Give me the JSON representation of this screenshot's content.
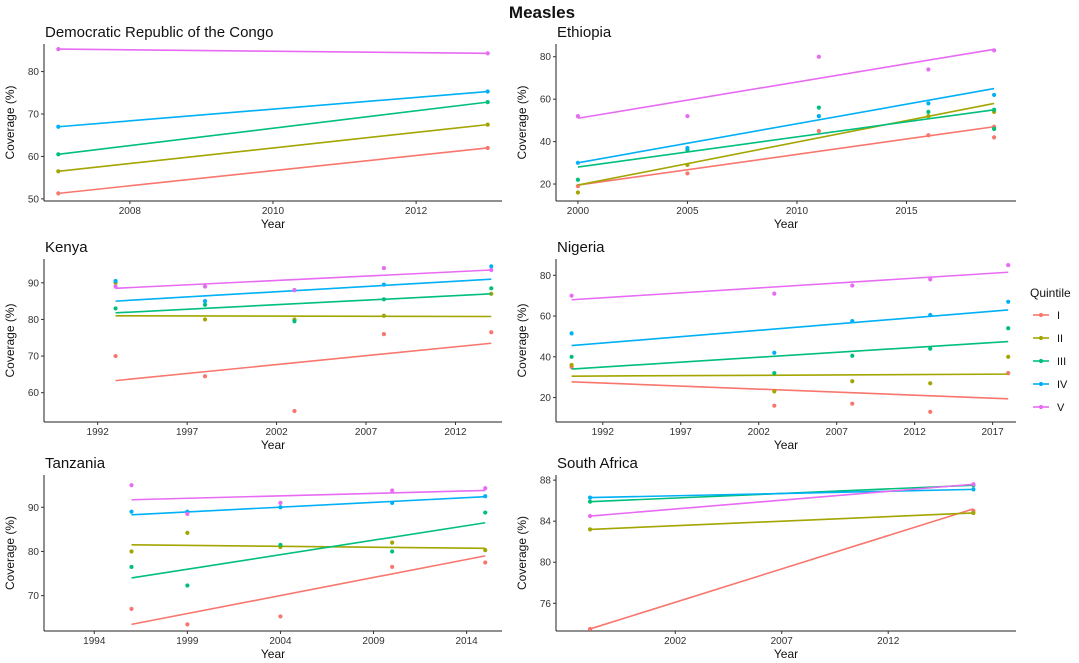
{
  "title": "Measles",
  "legend": {
    "title": "Quintile",
    "position": "right",
    "entries": [
      {
        "name": "I",
        "color": "#F8766D"
      },
      {
        "name": "II",
        "color": "#A3A500"
      },
      {
        "name": "III",
        "color": "#00BF7D"
      },
      {
        "name": "IV",
        "color": "#00B0F6"
      },
      {
        "name": "V",
        "color": "#E76BF3"
      }
    ]
  },
  "chart_data": [
    {
      "type": "scatter",
      "title": "Democratic Republic of the Congo",
      "xlabel": "Year",
      "ylabel": "Coverage (%)",
      "xlim": [
        2006.8,
        2013.2
      ],
      "ylim": [
        49.5,
        86.5
      ],
      "xticks": [
        2008,
        2010,
        2012
      ],
      "yticks": [
        50,
        60,
        70,
        80
      ],
      "series": [
        {
          "name": "I",
          "points": [
            [
              2007,
              51.3
            ],
            [
              2013,
              62.0
            ]
          ],
          "fit": [
            [
              2007,
              51.3
            ],
            [
              2013,
              62.0
            ]
          ]
        },
        {
          "name": "II",
          "points": [
            [
              2007,
              56.5
            ],
            [
              2013,
              67.5
            ]
          ],
          "fit": [
            [
              2007,
              56.5
            ],
            [
              2013,
              67.5
            ]
          ]
        },
        {
          "name": "III",
          "points": [
            [
              2007,
              60.5
            ],
            [
              2013,
              72.8
            ]
          ],
          "fit": [
            [
              2007,
              60.5
            ],
            [
              2013,
              72.8
            ]
          ]
        },
        {
          "name": "IV",
          "points": [
            [
              2007,
              67.0
            ],
            [
              2013,
              75.3
            ]
          ],
          "fit": [
            [
              2007,
              67.0
            ],
            [
              2013,
              75.3
            ]
          ]
        },
        {
          "name": "V",
          "points": [
            [
              2007,
              85.3
            ],
            [
              2013,
              84.3
            ]
          ],
          "fit": [
            [
              2007,
              85.3
            ],
            [
              2013,
              84.3
            ]
          ]
        }
      ]
    },
    {
      "type": "scatter",
      "title": "Ethiopia",
      "xlabel": "Year",
      "ylabel": "Coverage (%)",
      "xlim": [
        1999.0,
        2020.0
      ],
      "ylim": [
        12,
        86
      ],
      "xticks": [
        2000,
        2005,
        2010,
        2015
      ],
      "yticks": [
        20,
        40,
        60,
        80
      ],
      "series": [
        {
          "name": "I",
          "points": [
            [
              2000,
              19
            ],
            [
              2005,
              25
            ],
            [
              2011,
              45
            ],
            [
              2016,
              43
            ],
            [
              2019,
              42
            ],
            [
              2019,
              47
            ]
          ],
          "fit": [
            [
              2000,
              19.5
            ],
            [
              2019,
              47.0
            ]
          ]
        },
        {
          "name": "II",
          "points": [
            [
              2000,
              16
            ],
            [
              2005,
              29
            ],
            [
              2011,
              52
            ],
            [
              2016,
              52
            ],
            [
              2019,
              54
            ],
            [
              2019,
              46
            ]
          ],
          "fit": [
            [
              2000,
              19.5
            ],
            [
              2019,
              58.0
            ]
          ]
        },
        {
          "name": "III",
          "points": [
            [
              2000,
              22
            ],
            [
              2005,
              36
            ],
            [
              2011,
              56
            ],
            [
              2016,
              54
            ],
            [
              2019,
              55
            ],
            [
              2019,
              46
            ]
          ],
          "fit": [
            [
              2000,
              28.0
            ],
            [
              2019,
              55.0
            ]
          ]
        },
        {
          "name": "IV",
          "points": [
            [
              2000,
              30
            ],
            [
              2005,
              37
            ],
            [
              2011,
              52
            ],
            [
              2016,
              58
            ],
            [
              2019,
              62
            ]
          ],
          "fit": [
            [
              2000,
              30.0
            ],
            [
              2019,
              65.0
            ]
          ]
        },
        {
          "name": "V",
          "points": [
            [
              2000,
              52
            ],
            [
              2005,
              52
            ],
            [
              2011,
              80
            ],
            [
              2016,
              74
            ],
            [
              2019,
              83
            ]
          ],
          "fit": [
            [
              2000,
              51.0
            ],
            [
              2019,
              83.5
            ]
          ]
        }
      ]
    },
    {
      "type": "scatter",
      "title": "Kenya",
      "xlabel": "Year",
      "ylabel": "Coverage (%)",
      "xlim": [
        1989.0,
        2014.6
      ],
      "ylim": [
        52,
        96.5
      ],
      "xticks": [
        1992,
        1997,
        2002,
        2007,
        2012
      ],
      "yticks": [
        60,
        70,
        80,
        90
      ],
      "series": [
        {
          "name": "I",
          "points": [
            [
              1993,
              70
            ],
            [
              1998,
              64.5
            ],
            [
              2003,
              55
            ],
            [
              2008,
              76
            ],
            [
              2014,
              76.5
            ]
          ],
          "fit": [
            [
              1993,
              63.3
            ],
            [
              2014,
              73.5
            ]
          ]
        },
        {
          "name": "II",
          "points": [
            [
              1993,
              90
            ],
            [
              1998,
              80
            ],
            [
              2003,
              80
            ],
            [
              2008,
              81
            ],
            [
              2014,
              87
            ]
          ],
          "fit": [
            [
              1993,
              81.0
            ],
            [
              2014,
              80.8
            ]
          ]
        },
        {
          "name": "III",
          "points": [
            [
              1993,
              83
            ],
            [
              1998,
              84
            ],
            [
              2003,
              79.5
            ],
            [
              2008,
              85.5
            ],
            [
              2014,
              88.5
            ]
          ],
          "fit": [
            [
              1993,
              81.8
            ],
            [
              2014,
              87.0
            ]
          ]
        },
        {
          "name": "IV",
          "points": [
            [
              1993,
              90.5
            ],
            [
              1998,
              85
            ],
            [
              2003,
              88
            ],
            [
              2008,
              89.5
            ],
            [
              2014,
              94.5
            ]
          ],
          "fit": [
            [
              1993,
              85.0
            ],
            [
              2014,
              91.0
            ]
          ]
        },
        {
          "name": "V",
          "points": [
            [
              1993,
              89
            ],
            [
              1998,
              89
            ],
            [
              2003,
              88
            ],
            [
              2008,
              94
            ],
            [
              2014,
              93.5
            ]
          ],
          "fit": [
            [
              1993,
              88.5
            ],
            [
              2014,
              93.5
            ]
          ]
        }
      ]
    },
    {
      "type": "scatter",
      "title": "Nigeria",
      "xlabel": "Year",
      "ylabel": "Coverage (%)",
      "xlim": [
        1989.0,
        2018.5
      ],
      "ylim": [
        8,
        88
      ],
      "xticks": [
        1992,
        1997,
        2002,
        2007,
        2012,
        2017
      ],
      "yticks": [
        20,
        40,
        60,
        80
      ],
      "series": [
        {
          "name": "I",
          "points": [
            [
              1990,
              35
            ],
            [
              2003,
              16
            ],
            [
              2008,
              17
            ],
            [
              2013,
              13
            ],
            [
              2018,
              32
            ]
          ],
          "fit": [
            [
              1990,
              27.7
            ],
            [
              2018,
              19.4
            ]
          ]
        },
        {
          "name": "II",
          "points": [
            [
              1990,
              36
            ],
            [
              2003,
              23
            ],
            [
              2008,
              28
            ],
            [
              2013,
              27
            ],
            [
              2018,
              40
            ]
          ],
          "fit": [
            [
              1990,
              30.5
            ],
            [
              2018,
              31.5
            ]
          ]
        },
        {
          "name": "III",
          "points": [
            [
              1990,
              40
            ],
            [
              2003,
              32
            ],
            [
              2008,
              40.5
            ],
            [
              2013,
              44
            ],
            [
              2018,
              54
            ]
          ],
          "fit": [
            [
              1990,
              34.0
            ],
            [
              2018,
              47.5
            ]
          ]
        },
        {
          "name": "IV",
          "points": [
            [
              1990,
              51.5
            ],
            [
              2003,
              42
            ],
            [
              2008,
              57.5
            ],
            [
              2013,
              60.5
            ],
            [
              2018,
              67
            ]
          ],
          "fit": [
            [
              1990,
              45.5
            ],
            [
              2018,
              63.0
            ]
          ]
        },
        {
          "name": "V",
          "points": [
            [
              1990,
              70
            ],
            [
              2003,
              71
            ],
            [
              2008,
              75
            ],
            [
              2013,
              78
            ],
            [
              2018,
              85
            ]
          ],
          "fit": [
            [
              1990,
              68.0
            ],
            [
              2018,
              81.5
            ]
          ]
        }
      ]
    },
    {
      "type": "scatter",
      "title": "Tanzania",
      "xlabel": "Year",
      "ylabel": "Coverage (%)",
      "xlim": [
        1991.3,
        2015.9
      ],
      "ylim": [
        62,
        97.3
      ],
      "xticks": [
        1994,
        1999,
        2004,
        2009,
        2014
      ],
      "yticks": [
        70,
        80,
        90
      ],
      "series": [
        {
          "name": "I",
          "points": [
            [
              1996,
              67
            ],
            [
              1999,
              63.5
            ],
            [
              2004,
              65.3
            ],
            [
              2010,
              76.5
            ],
            [
              2015,
              77.5
            ]
          ],
          "fit": [
            [
              1996,
              63.5
            ],
            [
              2015,
              79.0
            ]
          ]
        },
        {
          "name": "II",
          "points": [
            [
              1996,
              80
            ],
            [
              1999,
              84.2
            ],
            [
              2004,
              81
            ],
            [
              2010,
              82
            ],
            [
              2015,
              80.3
            ]
          ],
          "fit": [
            [
              1996,
              81.5
            ],
            [
              2015,
              80.7
            ]
          ]
        },
        {
          "name": "III",
          "points": [
            [
              1996,
              76.5
            ],
            [
              1999,
              72.3
            ],
            [
              2004,
              81.5
            ],
            [
              2010,
              80
            ],
            [
              2015,
              88.8
            ]
          ],
          "fit": [
            [
              1996,
              74.0
            ],
            [
              2015,
              86.5
            ]
          ]
        },
        {
          "name": "IV",
          "points": [
            [
              1996,
              89
            ],
            [
              1999,
              89
            ],
            [
              2004,
              90
            ],
            [
              2010,
              91
            ],
            [
              2015,
              92.5
            ]
          ],
          "fit": [
            [
              1996,
              88.3
            ],
            [
              2015,
              92.4
            ]
          ]
        },
        {
          "name": "V",
          "points": [
            [
              1996,
              95
            ],
            [
              1999,
              88.5
            ],
            [
              2004,
              91
            ],
            [
              2010,
              93.8
            ],
            [
              2015,
              94.3
            ]
          ],
          "fit": [
            [
              1996,
              91.7
            ],
            [
              2015,
              93.8
            ]
          ]
        }
      ]
    },
    {
      "type": "scatter",
      "title": "South Africa",
      "xlabel": "Year",
      "ylabel": "Coverage (%)",
      "xlim": [
        1996.4,
        2018.0
      ],
      "ylim": [
        73.3,
        88.5
      ],
      "xticks": [
        2002,
        2007,
        2012
      ],
      "yticks": [
        76,
        80,
        84,
        88
      ],
      "series": [
        {
          "name": "I",
          "points": [
            [
              1998,
              73.5
            ],
            [
              2016,
              85.0
            ]
          ],
          "fit": [
            [
              1998,
              73.5
            ],
            [
              2016,
              85.2
            ]
          ]
        },
        {
          "name": "II",
          "points": [
            [
              1998,
              83.2
            ],
            [
              2016,
              84.8
            ]
          ],
          "fit": [
            [
              1998,
              83.2
            ],
            [
              2016,
              84.8
            ]
          ]
        },
        {
          "name": "III",
          "points": [
            [
              1998,
              85.9
            ],
            [
              2016,
              87.5
            ]
          ],
          "fit": [
            [
              1998,
              85.9
            ],
            [
              2016,
              87.5
            ]
          ]
        },
        {
          "name": "IV",
          "points": [
            [
              1998,
              86.3
            ],
            [
              2016,
              87.1
            ]
          ],
          "fit": [
            [
              1998,
              86.3
            ],
            [
              2016,
              87.1
            ]
          ]
        },
        {
          "name": "V",
          "points": [
            [
              1998,
              84.5
            ],
            [
              2016,
              87.6
            ]
          ],
          "fit": [
            [
              1998,
              84.5
            ],
            [
              2016,
              87.6
            ]
          ]
        }
      ]
    }
  ]
}
